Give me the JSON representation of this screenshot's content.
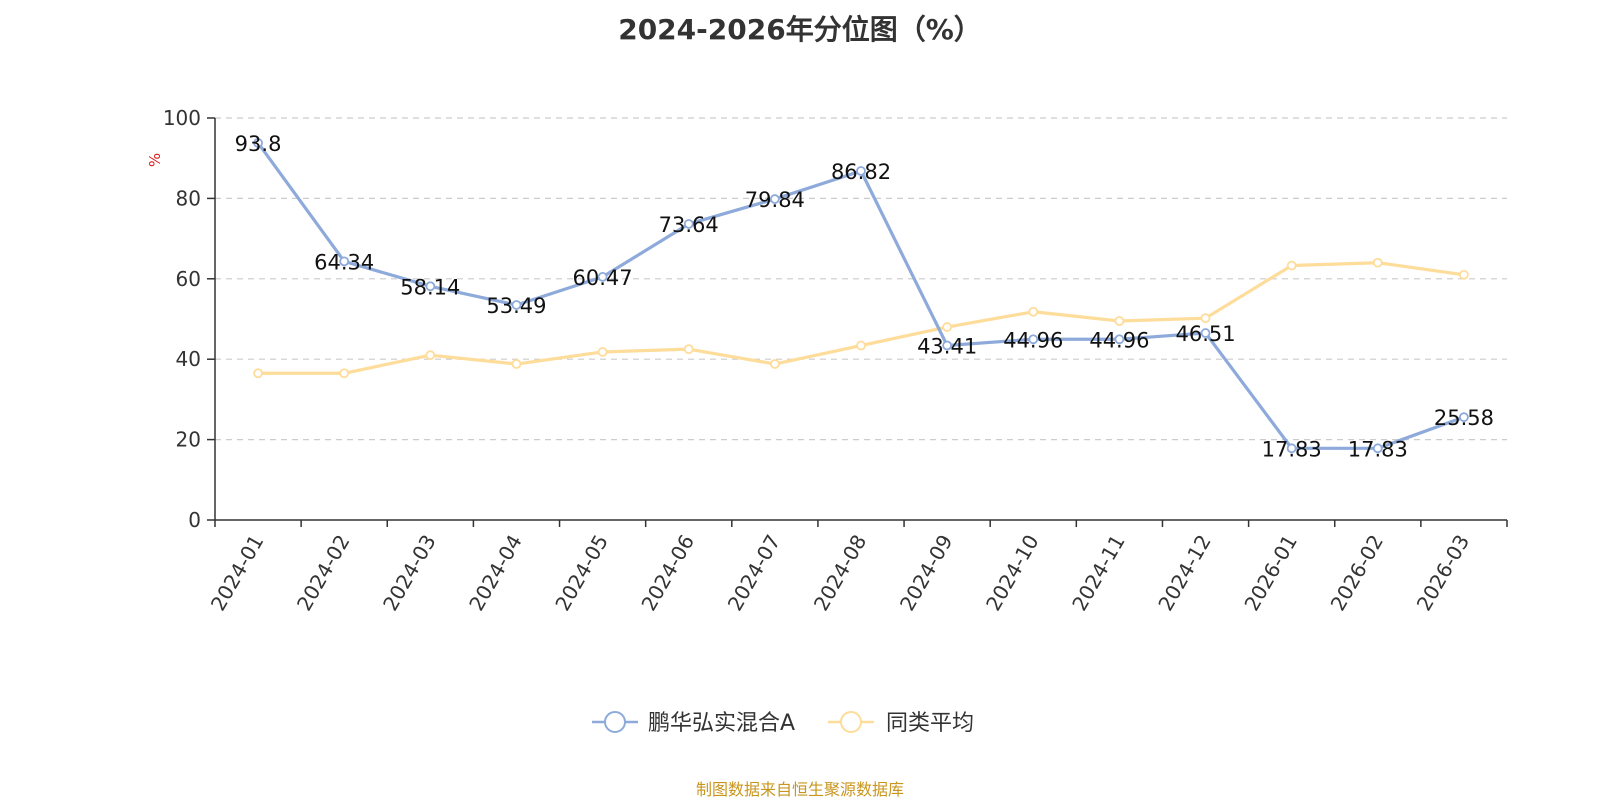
{
  "chart_data": {
    "type": "line",
    "title": "2024-2026年分位图（%）",
    "ylabel": "%",
    "xlabel": "",
    "categories": [
      "2024-01",
      "2024-02",
      "2024-03",
      "2024-04",
      "2024-05",
      "2024-06",
      "2024-07",
      "2024-08",
      "2024-09",
      "2024-10",
      "2024-11",
      "2024-12",
      "2026-01",
      "2026-02",
      "2026-03"
    ],
    "ylim": [
      0,
      100
    ],
    "yticks": [
      0,
      20,
      40,
      60,
      80,
      100
    ],
    "grid": true,
    "legend_position": "bottom-center",
    "series": [
      {
        "name": "鹏华弘实混合A",
        "color": "#8eaadb",
        "values": [
          93.8,
          64.34,
          58.14,
          53.49,
          60.47,
          73.64,
          79.84,
          86.82,
          43.41,
          44.96,
          44.96,
          46.51,
          17.83,
          17.83,
          25.58
        ],
        "labels": [
          "93.8",
          "64.34",
          "58.14",
          "53.49",
          "60.47",
          "73.64",
          "79.84",
          "86.82",
          "43.41",
          "44.96",
          "44.96",
          "46.51",
          "17.83",
          "17.83",
          "25.58"
        ]
      },
      {
        "name": "同类平均",
        "color": "#fedc9a",
        "values": [
          36.5,
          36.5,
          41.0,
          38.8,
          41.8,
          42.5,
          38.8,
          43.4,
          48.0,
          51.8,
          49.5,
          50.2,
          63.3,
          64.0,
          61.0
        ]
      }
    ]
  },
  "source_note": "制图数据来自恒生聚源数据库",
  "colors": {
    "axis": "#333333",
    "grid": "#cccccc",
    "unit_label": "#e02020",
    "source_note": "#c8961e"
  }
}
